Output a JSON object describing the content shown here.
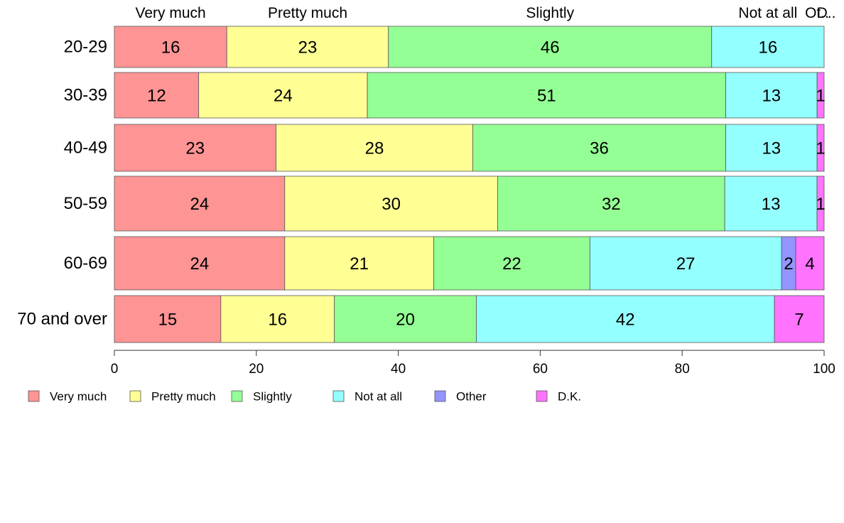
{
  "chart_data": {
    "type": "bar",
    "orientation": "horizontal",
    "stacked": true,
    "categories": [
      "20-29",
      "30-39",
      "40-49",
      "50-59",
      "60-69",
      "70 and over"
    ],
    "series": [
      {
        "name": "Very much",
        "color": "#ff9494",
        "values": [
          16,
          12,
          23,
          24,
          24,
          15
        ]
      },
      {
        "name": "Pretty much",
        "color": "#ffff94",
        "values": [
          23,
          24,
          28,
          30,
          21,
          16
        ]
      },
      {
        "name": "Slightly",
        "color": "#94ff94",
        "values": [
          46,
          51,
          36,
          32,
          22,
          20
        ]
      },
      {
        "name": "Not at all",
        "color": "#94ffff",
        "values": [
          16,
          13,
          13,
          13,
          27,
          42
        ]
      },
      {
        "name": "Other",
        "color": "#9494ff",
        "values": [
          0,
          0,
          0,
          0,
          2,
          0
        ]
      },
      {
        "name": "D.K.",
        "color": "#ff73ff",
        "values": [
          0,
          1,
          1,
          1,
          4,
          7
        ]
      }
    ],
    "top_labels": [
      "Very much",
      "Pretty much",
      "Slightly",
      "Not at all",
      "Ot..",
      "D.."
    ],
    "xlim": [
      0,
      100
    ],
    "xticks": [
      "0",
      "20",
      "40",
      "60",
      "80",
      "100"
    ],
    "grid": false,
    "legend_position": "bottom-left"
  }
}
